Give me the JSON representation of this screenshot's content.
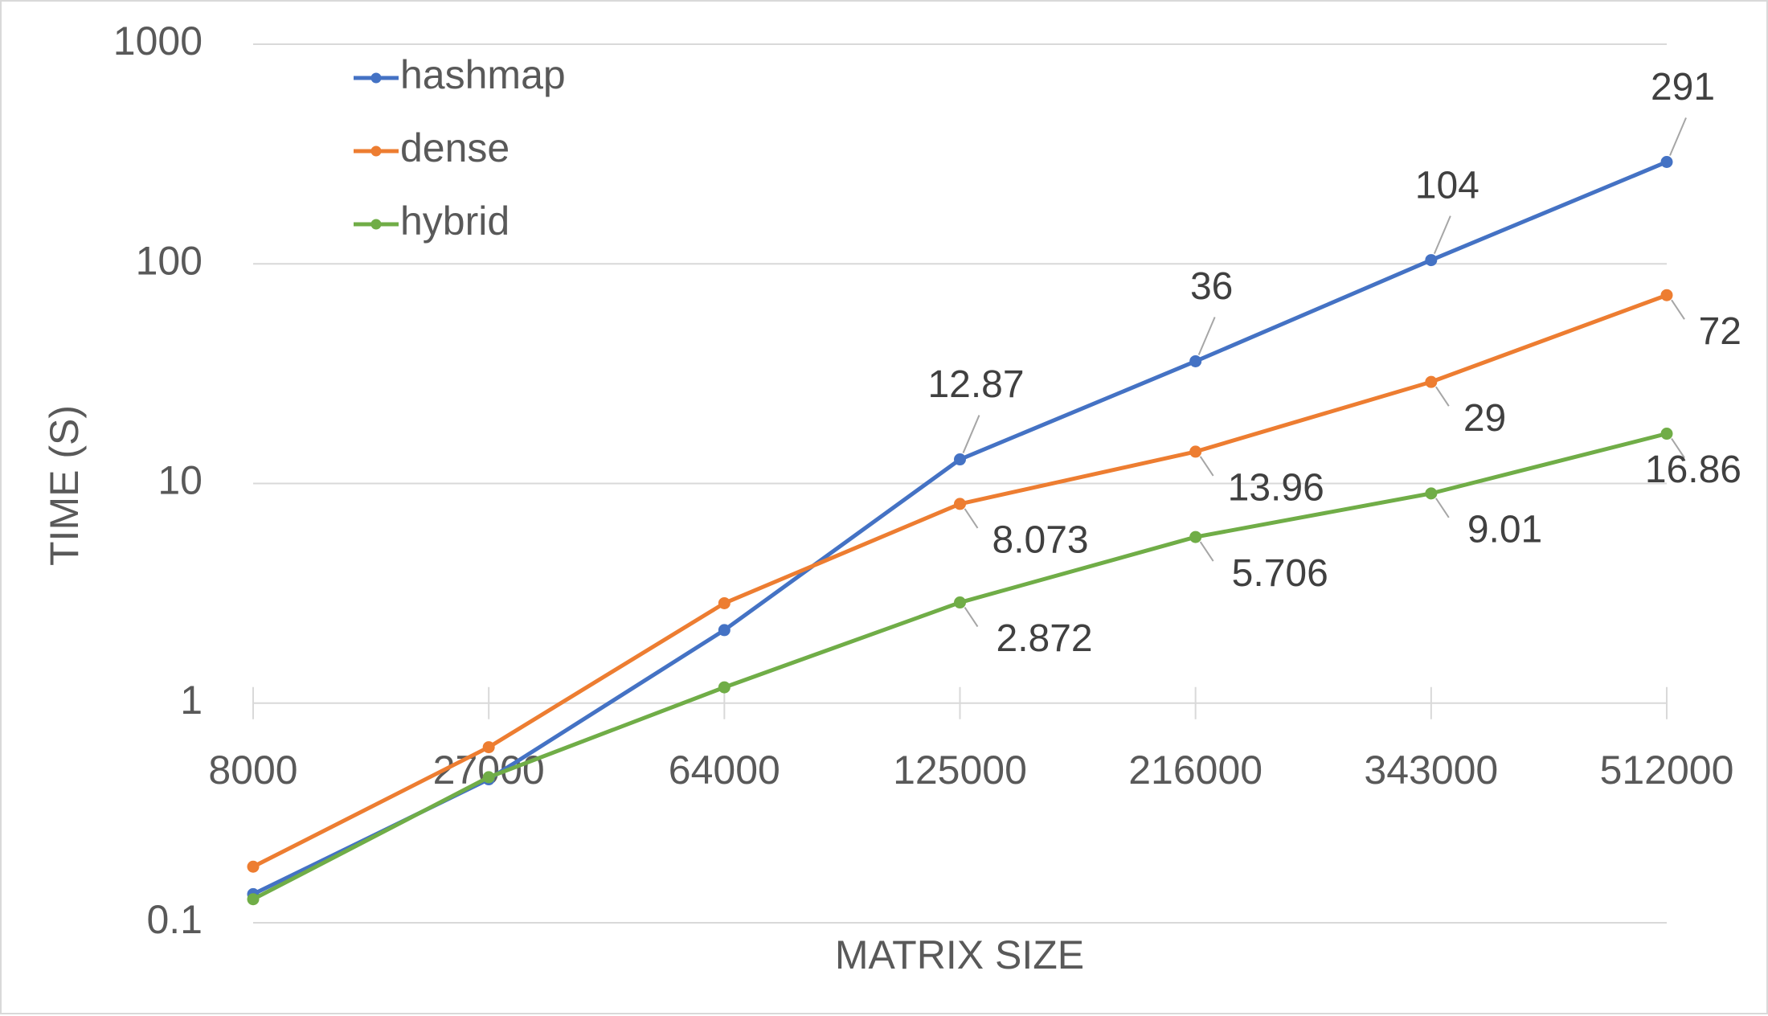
{
  "chart_data": {
    "type": "line",
    "title": "",
    "xlabel": "MATRIX SIZE",
    "ylabel": "TIME (S)",
    "yscale": "log",
    "ylim": [
      0.1,
      1000
    ],
    "y_ticks": [
      {
        "value": 1000,
        "label": "1000"
      },
      {
        "value": 100,
        "label": "100"
      },
      {
        "value": 10,
        "label": "10"
      },
      {
        "value": 1,
        "label": "1"
      },
      {
        "value": 0.1,
        "label": "0.1"
      }
    ],
    "categories": [
      "8000",
      "27000",
      "64000",
      "125000",
      "216000",
      "343000",
      "512000"
    ],
    "grid": true,
    "legend_position": "top-left",
    "series": [
      {
        "name": "hashmap",
        "color": "#4472c4",
        "values": [
          0.135,
          0.45,
          2.15,
          12.87,
          36,
          104,
          291
        ],
        "data_labels": [
          null,
          null,
          null,
          "12.87",
          "36",
          "104",
          "291"
        ]
      },
      {
        "name": "dense",
        "color": "#ed7d31",
        "values": [
          0.18,
          0.63,
          2.85,
          8.073,
          13.96,
          29,
          72
        ],
        "data_labels": [
          null,
          null,
          null,
          "8.073",
          "13.96",
          "29",
          "72"
        ]
      },
      {
        "name": "hybrid",
        "color": "#70ad47",
        "values": [
          0.128,
          0.46,
          1.18,
          2.872,
          5.706,
          9.01,
          16.86
        ],
        "data_labels": [
          null,
          null,
          null,
          "2.872",
          "5.706",
          "9.01",
          "16.86"
        ]
      }
    ]
  }
}
